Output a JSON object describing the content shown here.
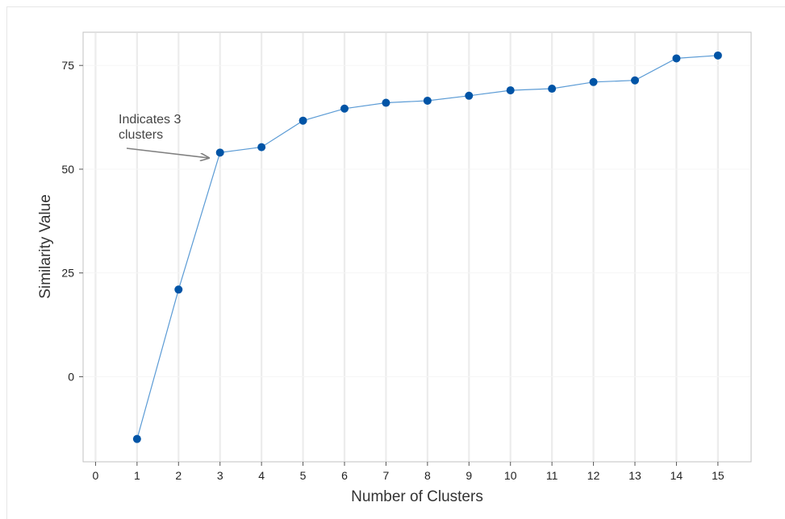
{
  "chart_data": {
    "type": "line",
    "title": "",
    "xlabel": "Number of Clusters",
    "ylabel": "Similarity Value",
    "xlim": [
      -0.3,
      15.8
    ],
    "ylim": [
      -20.5,
      83
    ],
    "x_ticks": [
      0,
      1,
      2,
      3,
      4,
      5,
      6,
      7,
      8,
      9,
      10,
      11,
      12,
      13,
      14,
      15
    ],
    "y_ticks": [
      0,
      25,
      50,
      75
    ],
    "grid": "vertical",
    "legend": "none",
    "series": [
      {
        "x": [
          1,
          2,
          3,
          4,
          5,
          6,
          7,
          8,
          9,
          10,
          11,
          12,
          13,
          14,
          15
        ],
        "values": [
          -15,
          21,
          54,
          55.3,
          61.7,
          64.6,
          66,
          66.5,
          67.7,
          69,
          69.4,
          71,
          71.4,
          76.7,
          77.4
        ]
      }
    ],
    "annotations": [
      {
        "lines": [
          "Indicates 3",
          "clusters"
        ],
        "points_to": {
          "x": 3,
          "y": 54
        }
      }
    ],
    "colors": {
      "marker": "#0054a6",
      "line": "#5b9bd5",
      "grid": "#ececec",
      "arrow": "#808080",
      "frame": "#c0c0c0"
    }
  }
}
